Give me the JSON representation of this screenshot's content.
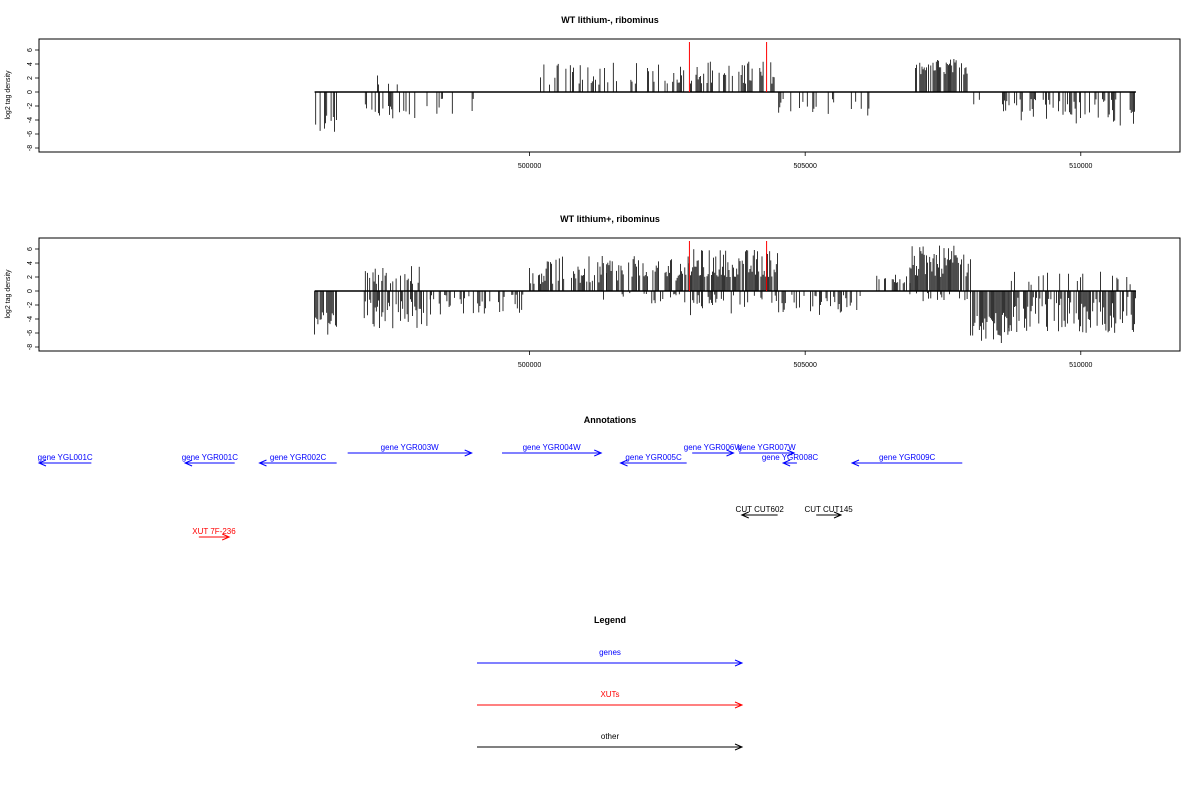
{
  "chart_data": [
    {
      "type": "bar",
      "title": "WT lithium-, ribominus",
      "ylabel": "log2 tag density",
      "xlim": [
        491100,
        511800
      ],
      "ylim": [
        -8,
        7
      ],
      "yticks": [
        -8,
        -6,
        -4,
        -2,
        0,
        2,
        4,
        6
      ],
      "xticks": [
        500000,
        505000,
        510000
      ],
      "grid": false,
      "bar_color": "#000000",
      "highlight_color": "#ff0000",
      "highlight_positions": [
        502900,
        504300
      ],
      "series": [
        {
          "regions": [
            {
              "start": 496100,
              "end": 496500,
              "strand": "minus",
              "min": 3,
              "max": 6,
              "density": 0.5
            },
            {
              "start": 497000,
              "end": 497950,
              "strand": "minus",
              "min": 1.5,
              "max": 4.5,
              "density": 0.35
            },
            {
              "start": 497100,
              "end": 497950,
              "strand": "plus",
              "min": 0.8,
              "max": 2.5,
              "density": 0.12
            },
            {
              "start": 498100,
              "end": 499000,
              "strand": "minus",
              "min": 0.8,
              "max": 3.5,
              "density": 0.15
            },
            {
              "start": 500100,
              "end": 501400,
              "strand": "plus",
              "min": 1,
              "max": 4.2,
              "density": 0.35
            },
            {
              "start": 501400,
              "end": 502800,
              "strand": "plus",
              "min": 1.2,
              "max": 4.2,
              "density": 0.4
            },
            {
              "start": 502900,
              "end": 504500,
              "strand": "plus",
              "min": 1.2,
              "max": 4.5,
              "density": 0.45
            },
            {
              "start": 504500,
              "end": 506300,
              "strand": "minus",
              "min": 0.8,
              "max": 3.5,
              "density": 0.2
            },
            {
              "start": 506300,
              "end": 506600,
              "strand": "plus",
              "min": 1,
              "max": 2,
              "density": 0.05
            },
            {
              "start": 507000,
              "end": 507950,
              "strand": "plus",
              "min": 2.5,
              "max": 4.8,
              "density": 0.8
            },
            {
              "start": 508000,
              "end": 508900,
              "strand": "minus",
              "min": 0.8,
              "max": 3,
              "density": 0.15
            },
            {
              "start": 508900,
              "end": 511000,
              "strand": "minus",
              "min": 1,
              "max": 4.8,
              "density": 0.4
            }
          ]
        }
      ]
    },
    {
      "type": "bar",
      "title": "WT lithium+, ribominus",
      "ylabel": "log2 tag density",
      "xlim": [
        491100,
        511800
      ],
      "ylim": [
        -8,
        7
      ],
      "yticks": [
        -8,
        -6,
        -4,
        -2,
        0,
        2,
        4,
        6
      ],
      "xticks": [
        500000,
        505000,
        510000
      ],
      "grid": false,
      "bar_color": "#000000",
      "highlight_color": "#ff0000",
      "highlight_positions": [
        502900,
        504300
      ],
      "series": [
        {
          "regions": [
            {
              "start": 496100,
              "end": 496500,
              "strand": "minus",
              "min": 3,
              "max": 6.5,
              "density": 0.9
            },
            {
              "start": 497000,
              "end": 498000,
              "strand": "plus",
              "min": 1,
              "max": 3.8,
              "density": 0.55
            },
            {
              "start": 497000,
              "end": 498200,
              "strand": "minus",
              "min": 1,
              "max": 5.5,
              "density": 0.6
            },
            {
              "start": 498200,
              "end": 499900,
              "strand": "minus",
              "min": 0.5,
              "max": 3.5,
              "density": 0.3
            },
            {
              "start": 500000,
              "end": 501400,
              "strand": "plus",
              "min": 1,
              "max": 5,
              "density": 0.65
            },
            {
              "start": 501400,
              "end": 502900,
              "strand": "plus",
              "min": 1.5,
              "max": 5,
              "density": 0.7
            },
            {
              "start": 501300,
              "end": 502900,
              "strand": "minus",
              "min": 0.3,
              "max": 2,
              "density": 0.15
            },
            {
              "start": 502900,
              "end": 504500,
              "strand": "plus",
              "min": 2,
              "max": 6,
              "density": 0.9
            },
            {
              "start": 502900,
              "end": 504500,
              "strand": "minus",
              "min": 0.5,
              "max": 3.5,
              "density": 0.45
            },
            {
              "start": 504500,
              "end": 506200,
              "strand": "minus",
              "min": 0.5,
              "max": 3.5,
              "density": 0.35
            },
            {
              "start": 506200,
              "end": 506900,
              "strand": "plus",
              "min": 1,
              "max": 2.5,
              "density": 0.25
            },
            {
              "start": 506900,
              "end": 508000,
              "strand": "plus",
              "min": 2,
              "max": 6.5,
              "density": 0.9
            },
            {
              "start": 506900,
              "end": 508000,
              "strand": "minus",
              "min": 0.3,
              "max": 1.5,
              "density": 0.2
            },
            {
              "start": 508000,
              "end": 508700,
              "strand": "minus",
              "min": 3,
              "max": 7.5,
              "density": 0.9
            },
            {
              "start": 508700,
              "end": 511000,
              "strand": "minus",
              "min": 0.8,
              "max": 6,
              "density": 0.75
            },
            {
              "start": 508700,
              "end": 511000,
              "strand": "plus",
              "min": 0.8,
              "max": 3,
              "density": 0.15
            }
          ]
        }
      ]
    }
  ],
  "annotations": {
    "title": "Annotations",
    "features": [
      {
        "label": "gene YGL001C",
        "type": "gene",
        "strand": "-",
        "start": 491100,
        "end": 492050,
        "row": 1
      },
      {
        "label": "gene YGR001C",
        "type": "gene",
        "strand": "-",
        "start": 493750,
        "end": 494650,
        "row": 1
      },
      {
        "label": "gene YGR002C",
        "type": "gene",
        "strand": "-",
        "start": 495100,
        "end": 496500,
        "row": 1
      },
      {
        "label": "gene YGR003W",
        "type": "gene",
        "strand": "+",
        "start": 496700,
        "end": 498950,
        "row": 0
      },
      {
        "label": "gene YGR004W",
        "type": "gene",
        "strand": "+",
        "start": 499500,
        "end": 501300,
        "row": 0
      },
      {
        "label": "gene YGR005C",
        "type": "gene",
        "strand": "-",
        "start": 501650,
        "end": 502850,
        "row": 1
      },
      {
        "label": "gene YGR006W",
        "type": "gene",
        "strand": "+",
        "start": 502950,
        "end": 503700,
        "row": 0
      },
      {
        "label": "gene YGR007W",
        "type": "gene",
        "strand": "+",
        "start": 503800,
        "end": 504800,
        "row": 0
      },
      {
        "label": "gene YGR008C",
        "type": "gene",
        "strand": "-",
        "start": 504600,
        "end": 504850,
        "row": 1
      },
      {
        "label": "gene YGR009C",
        "type": "gene",
        "strand": "-",
        "start": 505850,
        "end": 507850,
        "row": 1
      },
      {
        "label": "XUT 7F-236",
        "type": "xut",
        "strand": "+",
        "start": 494000,
        "end": 494550,
        "row": 3
      },
      {
        "label": "CUT CUT602",
        "type": "other",
        "strand": "-",
        "start": 503850,
        "end": 504500,
        "row": 2
      },
      {
        "label": "CUT CUT145",
        "type": "other",
        "strand": "+",
        "start": 505200,
        "end": 505650,
        "row": 2
      }
    ]
  },
  "legend": {
    "title": "Legend",
    "items": [
      {
        "label": "genes",
        "color": "#0000ff"
      },
      {
        "label": "XUTs",
        "color": "#ff0000"
      },
      {
        "label": "other",
        "color": "#000000"
      }
    ]
  },
  "colors": {
    "gene": "#0000ff",
    "xut": "#ff0000",
    "other": "#000000"
  }
}
